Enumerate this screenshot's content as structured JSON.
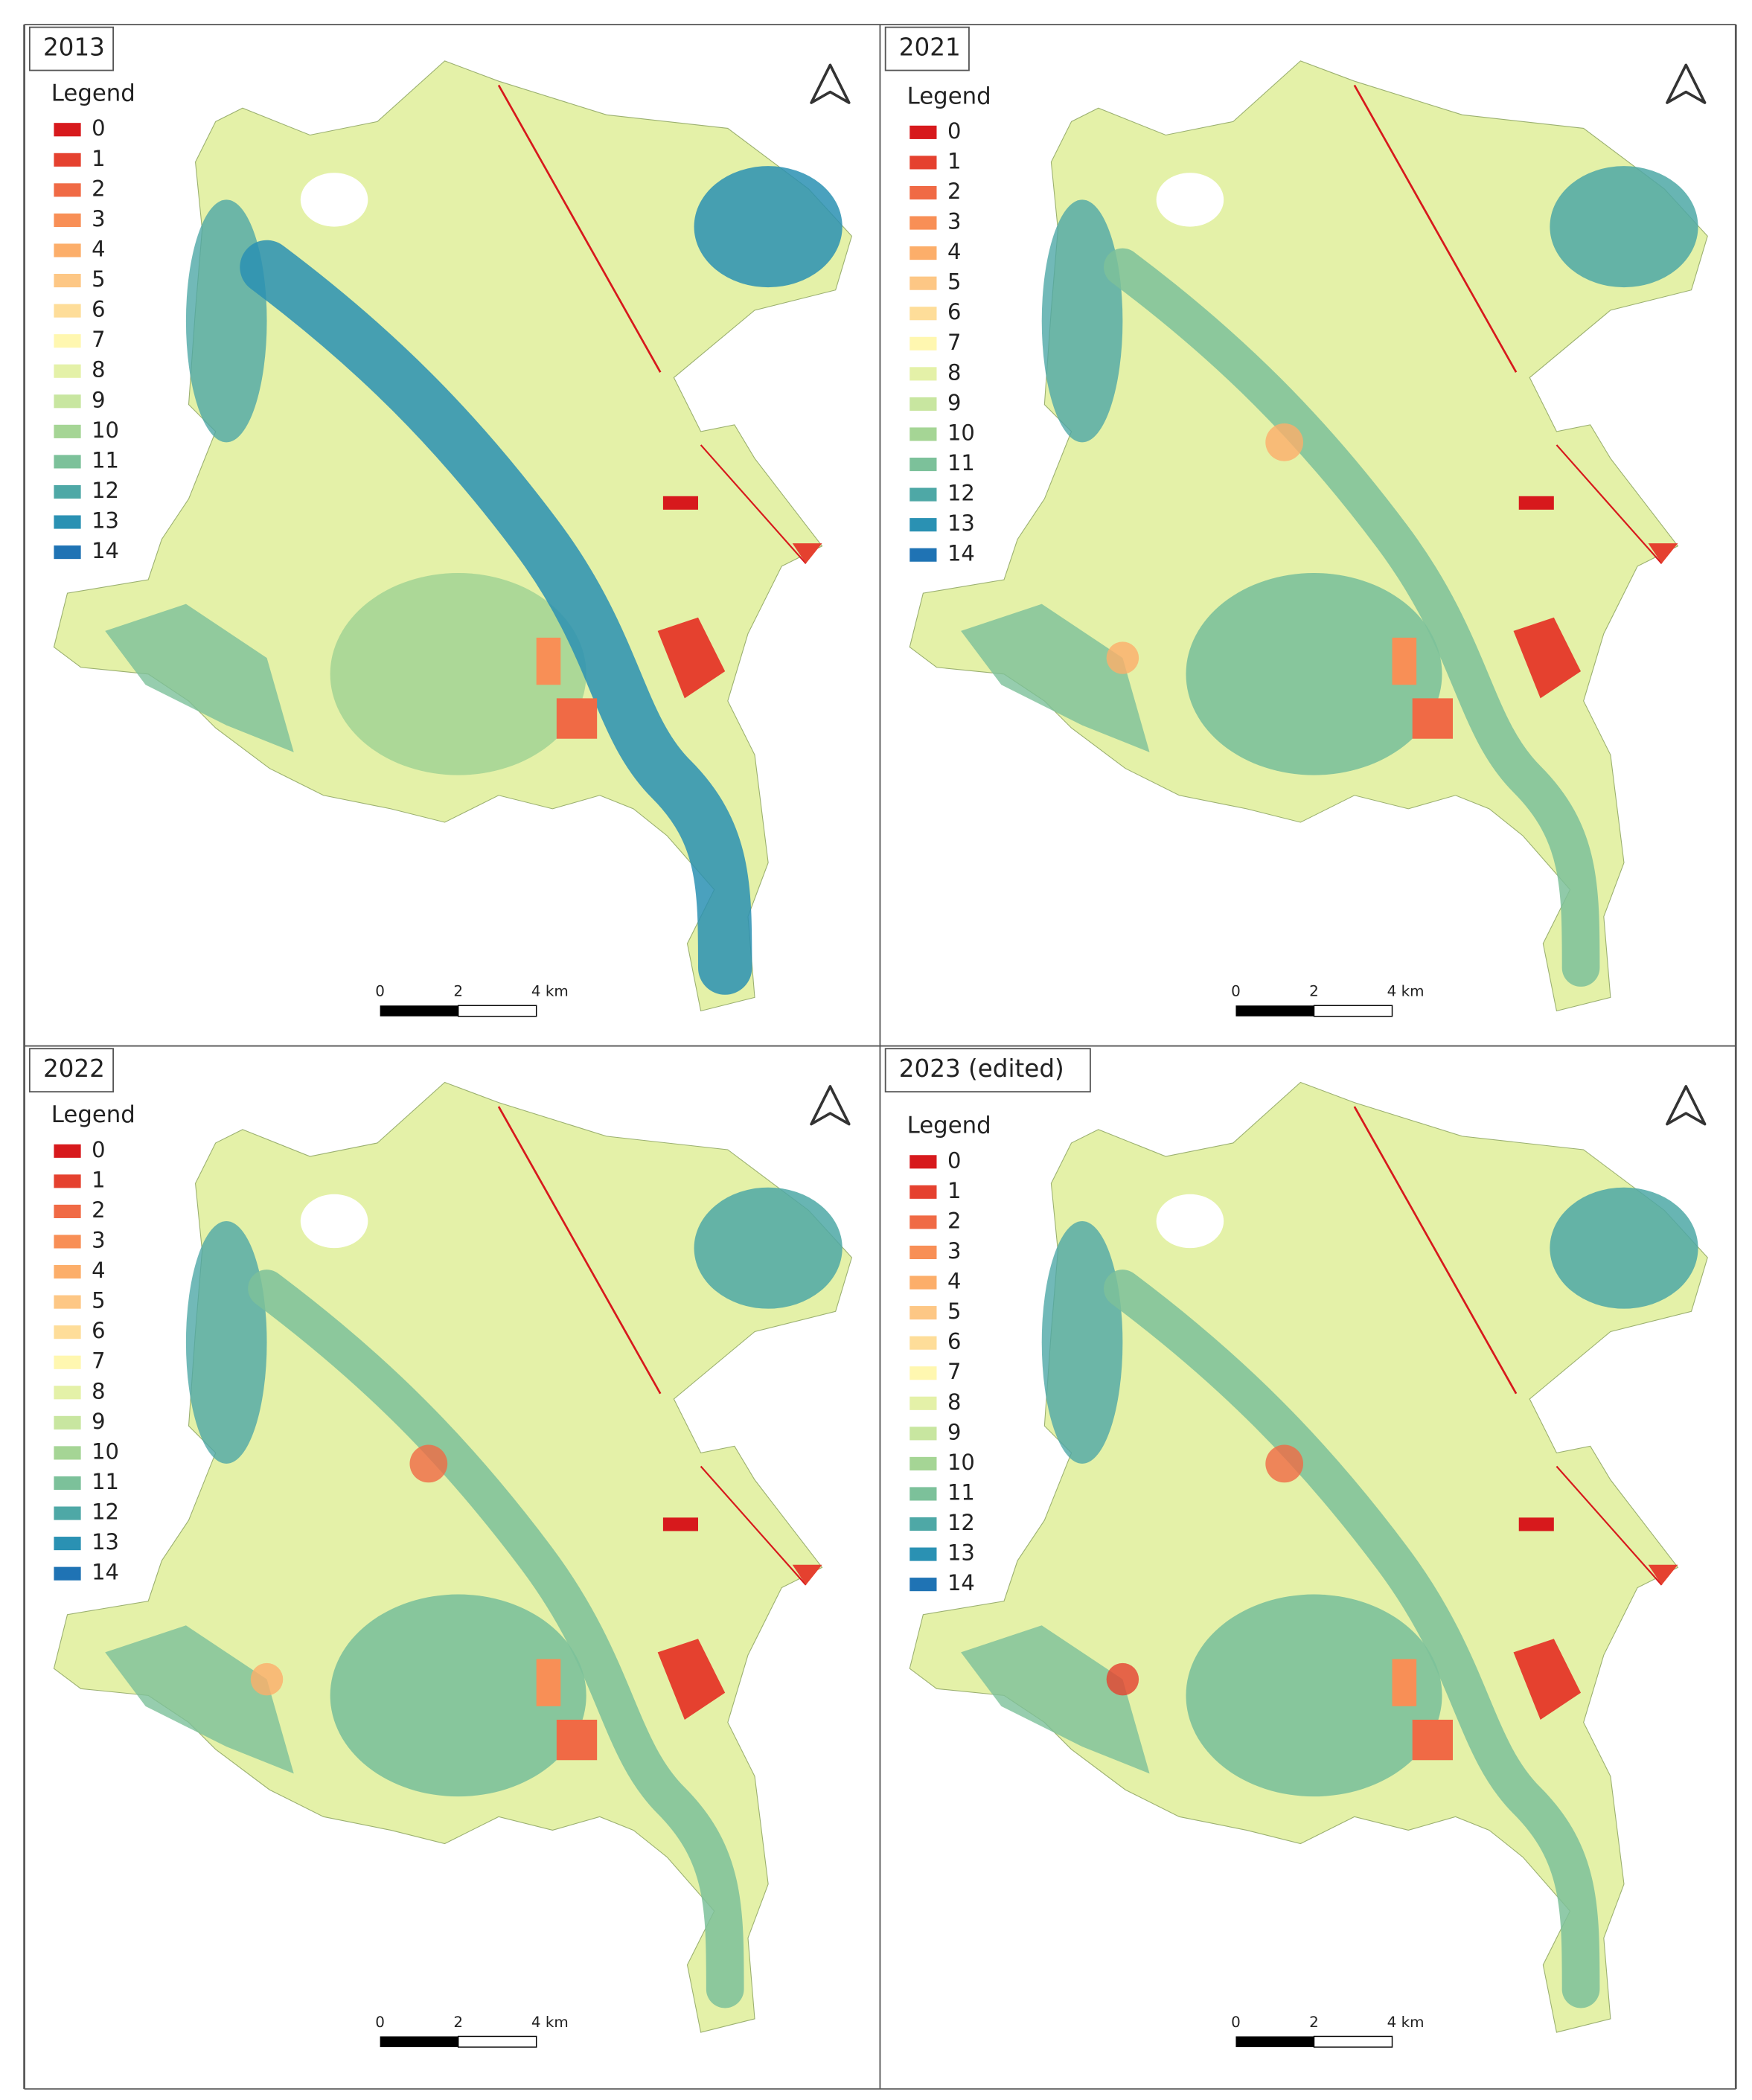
{
  "panels": [
    {
      "title": "2013",
      "legend": {
        "title": "Legend",
        "items": [
          {
            "label": "0",
            "color": "#d7191c"
          },
          {
            "label": "1",
            "color": "#e5412f"
          },
          {
            "label": "2",
            "color": "#f06a45"
          },
          {
            "label": "3",
            "color": "#f88f56"
          },
          {
            "label": "4",
            "color": "#fcae6a"
          },
          {
            "label": "5",
            "color": "#fdc785"
          },
          {
            "label": "6",
            "color": "#fedd99"
          },
          {
            "label": "7",
            "color": "#fff7b0"
          },
          {
            "label": "8",
            "color": "#e4f1a8"
          },
          {
            "label": "9",
            "color": "#c8e6a0"
          },
          {
            "label": "10",
            "color": "#a5d595"
          },
          {
            "label": "11",
            "color": "#7cc19a"
          },
          {
            "label": "12",
            "color": "#4ea8a6"
          },
          {
            "label": "13",
            "color": "#2a91b3"
          },
          {
            "label": "14",
            "color": "#1f73b4"
          }
        ]
      },
      "scale_bar": [
        "0",
        "2",
        "4 km"
      ]
    },
    {
      "title": "2021",
      "legend": {
        "title": "Legend",
        "items": [
          {
            "label": "0",
            "color": "#d7191c"
          },
          {
            "label": "1",
            "color": "#e5412f"
          },
          {
            "label": "2",
            "color": "#f06a45"
          },
          {
            "label": "3",
            "color": "#f88f56"
          },
          {
            "label": "4",
            "color": "#fcae6a"
          },
          {
            "label": "5",
            "color": "#fdc785"
          },
          {
            "label": "6",
            "color": "#fedd99"
          },
          {
            "label": "7",
            "color": "#fff7b0"
          },
          {
            "label": "8",
            "color": "#e4f1a8"
          },
          {
            "label": "9",
            "color": "#c8e6a0"
          },
          {
            "label": "10",
            "color": "#a5d595"
          },
          {
            "label": "11",
            "color": "#7cc19a"
          },
          {
            "label": "12",
            "color": "#4ea8a6"
          },
          {
            "label": "13",
            "color": "#2a91b3"
          },
          {
            "label": "14",
            "color": "#1f73b4"
          }
        ]
      },
      "scale_bar": [
        "0",
        "2",
        "4 km"
      ]
    },
    {
      "title": "2022",
      "legend": {
        "title": "Legend",
        "items": [
          {
            "label": "0",
            "color": "#d7191c"
          },
          {
            "label": "1",
            "color": "#e5412f"
          },
          {
            "label": "2",
            "color": "#f06a45"
          },
          {
            "label": "3",
            "color": "#f88f56"
          },
          {
            "label": "4",
            "color": "#fcae6a"
          },
          {
            "label": "5",
            "color": "#fdc785"
          },
          {
            "label": "6",
            "color": "#fedd99"
          },
          {
            "label": "7",
            "color": "#fff7b0"
          },
          {
            "label": "8",
            "color": "#e4f1a8"
          },
          {
            "label": "9",
            "color": "#c8e6a0"
          },
          {
            "label": "10",
            "color": "#a5d595"
          },
          {
            "label": "11",
            "color": "#7cc19a"
          },
          {
            "label": "12",
            "color": "#4ea8a6"
          },
          {
            "label": "13",
            "color": "#2a91b3"
          },
          {
            "label": "14",
            "color": "#1f73b4"
          }
        ]
      },
      "scale_bar": [
        "0",
        "2",
        "4 km"
      ]
    },
    {
      "title": "2023 (edited)",
      "legend": {
        "title": "Legend",
        "items": [
          {
            "label": "0",
            "color": "#d7191c"
          },
          {
            "label": "1",
            "color": "#e5412f"
          },
          {
            "label": "2",
            "color": "#f06a45"
          },
          {
            "label": "3",
            "color": "#f88f56"
          },
          {
            "label": "4",
            "color": "#fcae6a"
          },
          {
            "label": "5",
            "color": "#fdc785"
          },
          {
            "label": "6",
            "color": "#fedd99"
          },
          {
            "label": "7",
            "color": "#fff7b0"
          },
          {
            "label": "8",
            "color": "#e4f1a8"
          },
          {
            "label": "9",
            "color": "#c8e6a0"
          },
          {
            "label": "10",
            "color": "#a5d595"
          },
          {
            "label": "11",
            "color": "#7cc19a"
          },
          {
            "label": "12",
            "color": "#4ea8a6"
          },
          {
            "label": "13",
            "color": "#2a91b3"
          },
          {
            "label": "14",
            "color": "#1f73b4"
          }
        ]
      },
      "scale_bar": [
        "0",
        "2",
        "4 km"
      ]
    }
  ]
}
